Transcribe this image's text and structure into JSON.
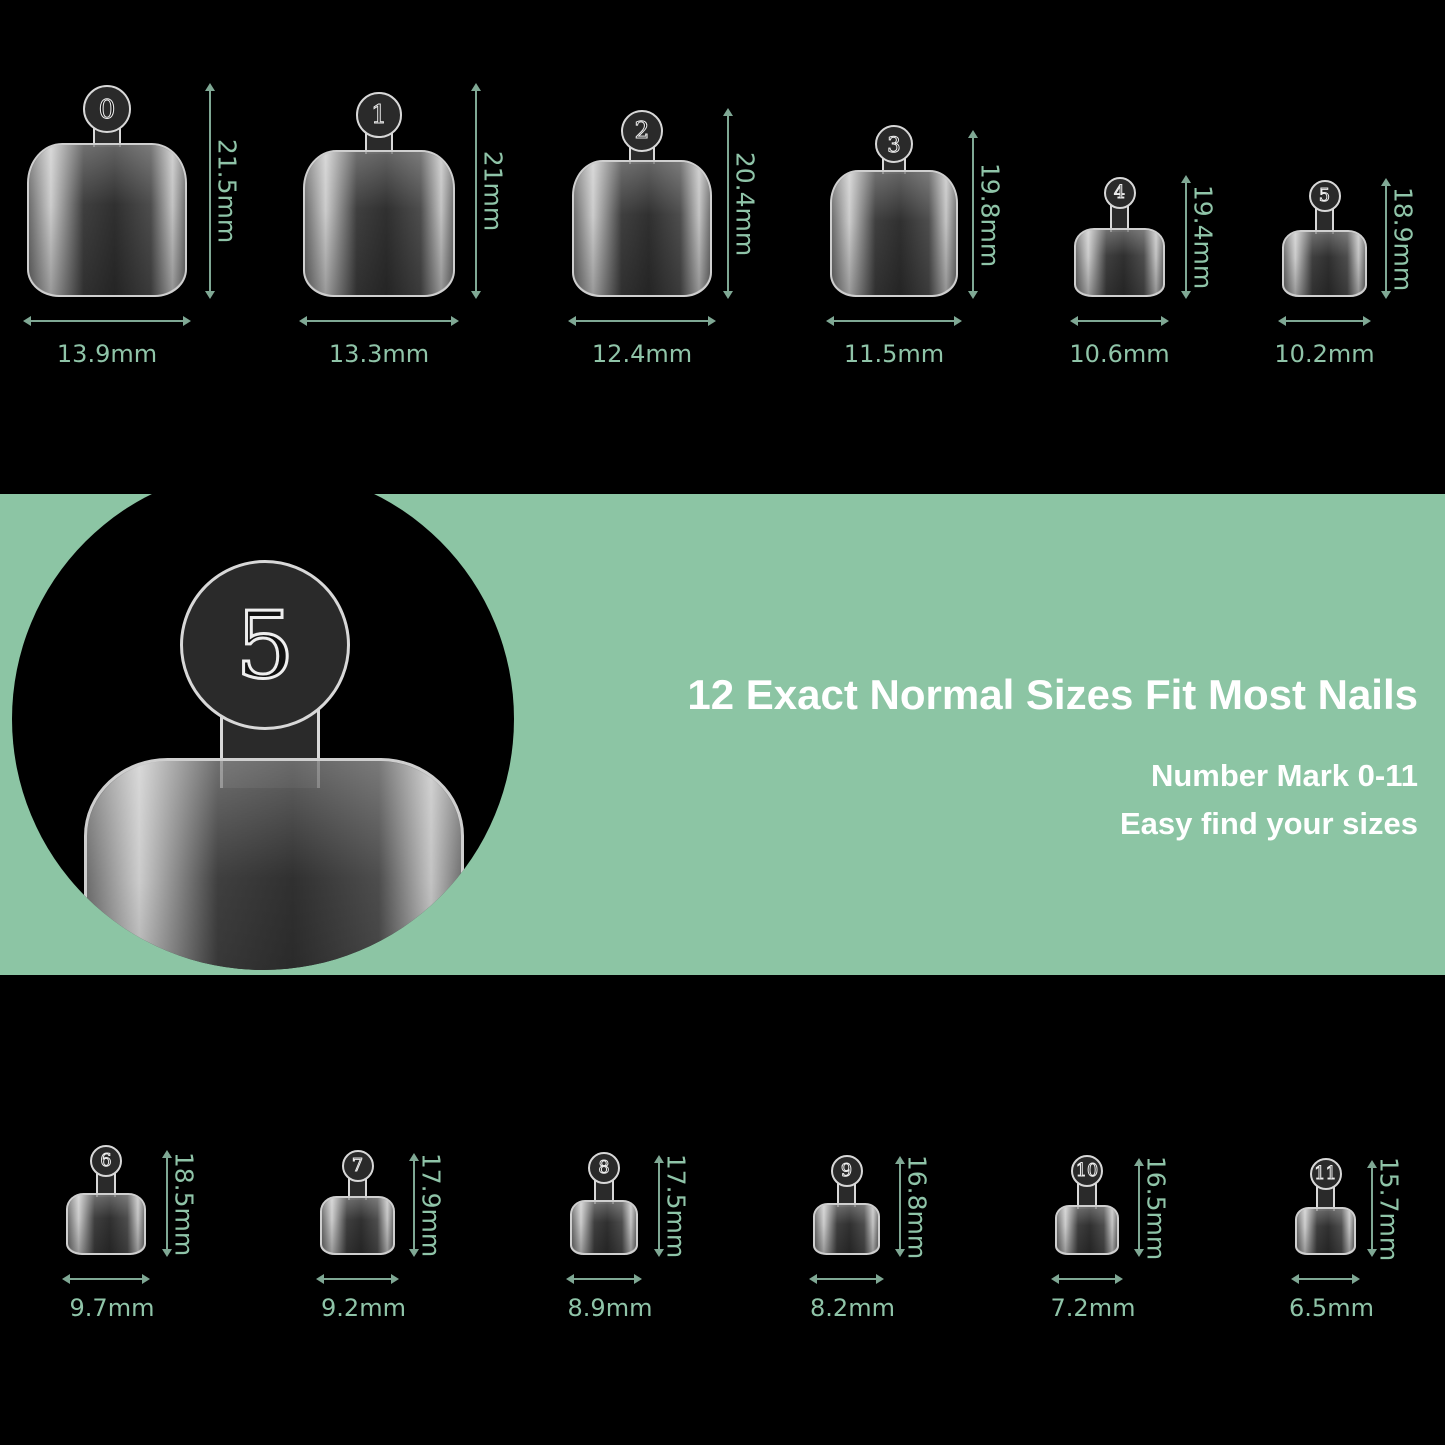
{
  "colors": {
    "background": "#000000",
    "banner": "#8cc5a4",
    "dimension_text": "#8fc4a8",
    "headline_text": "#ffffff"
  },
  "banner": {
    "headline": "12 Exact Normal Sizes Fit Most Nails",
    "sub_lines": [
      "Number Mark 0-11",
      "Easy find your sizes"
    ],
    "zoom_nail_number": "5"
  },
  "nails": [
    {
      "number": "0",
      "length": "21.5mm",
      "width": "13.9mm"
    },
    {
      "number": "1",
      "length": "21mm",
      "width": "13.3mm"
    },
    {
      "number": "2",
      "length": "20.4mm",
      "width": "12.4mm"
    },
    {
      "number": "3",
      "length": "19.8mm",
      "width": "11.5mm"
    },
    {
      "number": "4",
      "length": "19.4mm",
      "width": "10.6mm"
    },
    {
      "number": "5",
      "length": "18.9mm",
      "width": "10.2mm"
    },
    {
      "number": "6",
      "length": "18.5mm",
      "width": "9.7mm"
    },
    {
      "number": "7",
      "length": "17.9mm",
      "width": "9.2mm"
    },
    {
      "number": "8",
      "length": "17.5mm",
      "width": "8.9mm"
    },
    {
      "number": "9",
      "length": "16.8mm",
      "width": "8.2mm"
    },
    {
      "number": "10",
      "length": "16.5mm",
      "width": "7.2mm"
    },
    {
      "number": "11",
      "length": "15.7mm",
      "width": "6.5mm"
    }
  ]
}
